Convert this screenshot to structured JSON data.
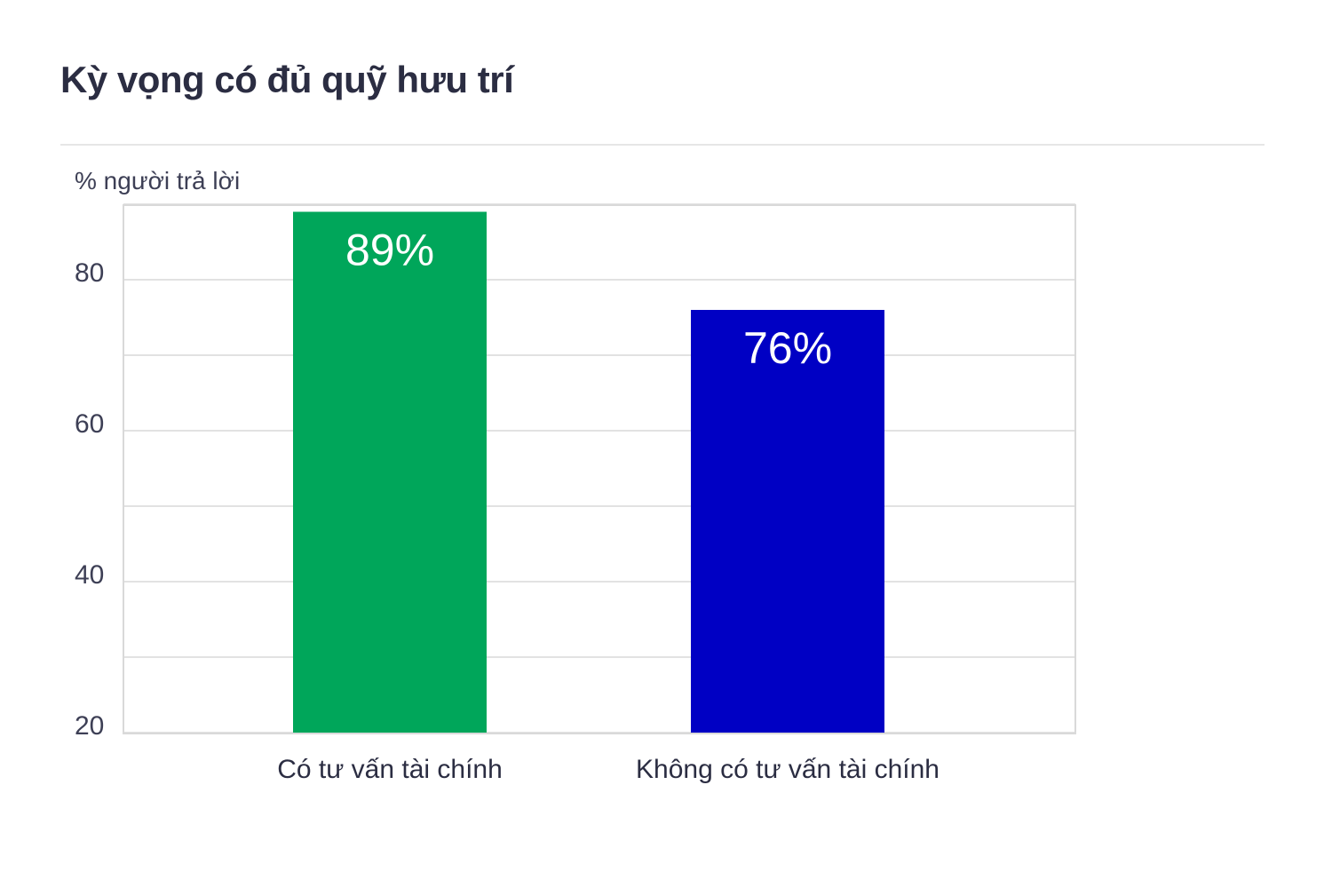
{
  "title": "Kỳ vọng có đủ quỹ hưu trí",
  "chart_data": {
    "type": "bar",
    "title": "Kỳ vọng có đủ quỹ hưu trí",
    "ylabel": "% người trả lời",
    "xlabel": "",
    "categories": [
      "Có tư vấn tài chính",
      "Không có tư vấn tài chính"
    ],
    "values": [
      89,
      76
    ],
    "data_labels": [
      "89%",
      "76%"
    ],
    "bar_colors": [
      "#00a65a",
      "#0000c4"
    ],
    "ylim": [
      20,
      90
    ],
    "yticks": [
      20,
      40,
      60,
      80
    ],
    "gridlines": [
      20,
      30,
      40,
      50,
      60,
      70,
      80,
      90
    ],
    "grid": true,
    "legend": "none"
  }
}
